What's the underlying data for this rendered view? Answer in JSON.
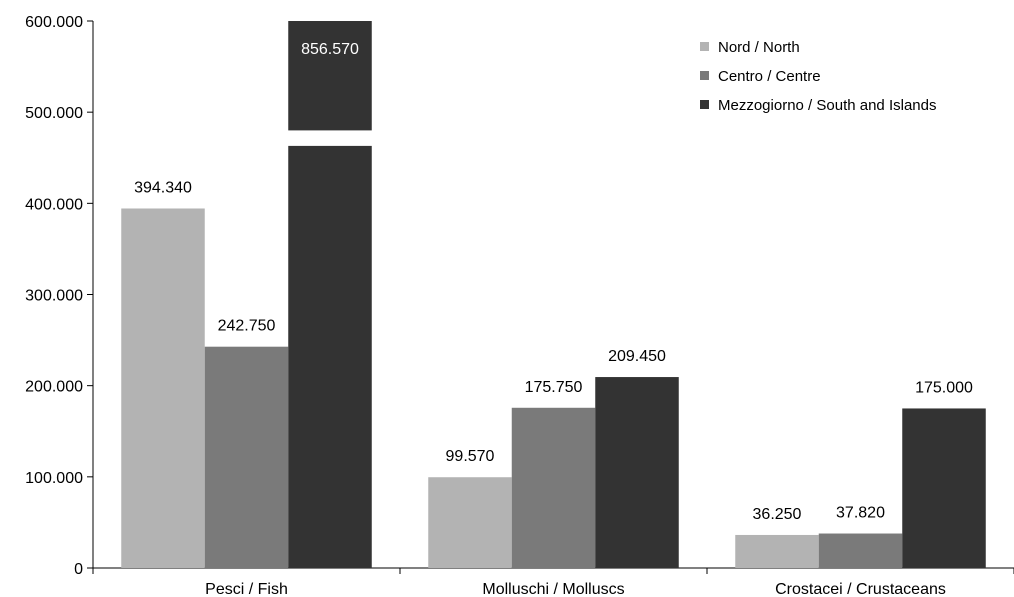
{
  "chart_data": {
    "type": "bar",
    "categories": [
      "Pesci / Fish",
      "Molluschi / Molluscs",
      "Crostacei / Crustaceans"
    ],
    "series": [
      {
        "name": "Nord / North",
        "color": "#b3b3b3",
        "values": [
          394340,
          99570,
          36250
        ],
        "labels": [
          "394.340",
          "99.570",
          "36.250"
        ]
      },
      {
        "name": "Centro / Centre",
        "color": "#7a7a7a",
        "values": [
          242750,
          175750,
          37820
        ],
        "labels": [
          "242.750",
          "175.750",
          "37.820"
        ]
      },
      {
        "name": "Mezzogiorno / South and Islands",
        "color": "#333333",
        "values": [
          856570,
          209450,
          175000
        ],
        "labels": [
          "856.570",
          "209.450",
          "175.000"
        ]
      }
    ],
    "ylim": [
      0,
      600000
    ],
    "yticks": [
      0,
      100000,
      200000,
      300000,
      400000,
      500000,
      600000
    ],
    "ytick_labels": [
      "0",
      "100.000",
      "200.000",
      "300.000",
      "400.000",
      "500.000",
      "600.000"
    ],
    "axis_break": true,
    "grid": false,
    "legend_position": "top-right",
    "title": "",
    "xlabel": "",
    "ylabel": ""
  }
}
